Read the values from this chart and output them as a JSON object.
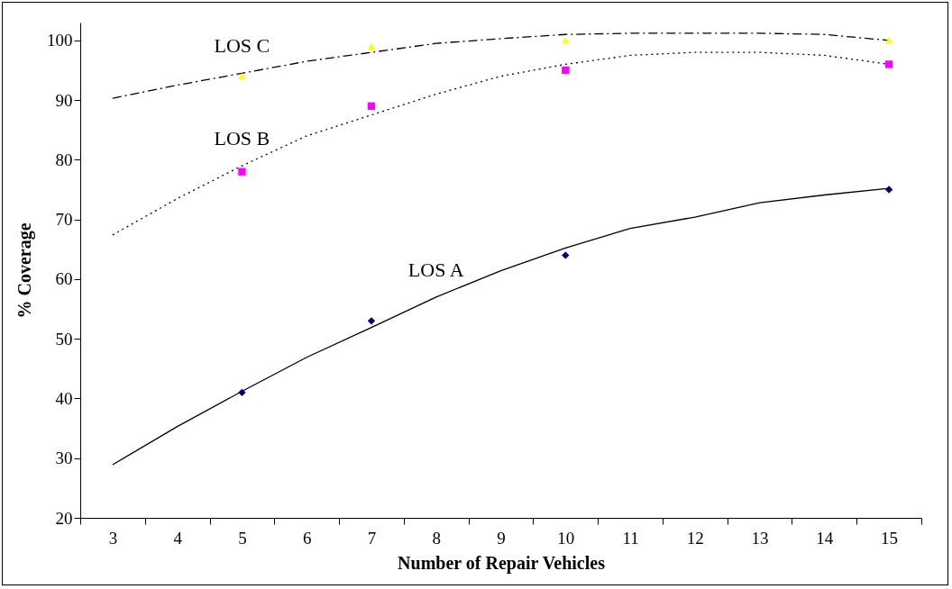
{
  "chart_data": {
    "type": "line",
    "xlabel": "Number of Repair Vehicles",
    "ylabel": "% Coverage",
    "categories": [
      "3",
      "4",
      "5",
      "6",
      "7",
      "8",
      "9",
      "10",
      "11",
      "12",
      "13",
      "14",
      "15"
    ],
    "ylim": [
      20,
      103
    ],
    "yticks": [
      20,
      30,
      40,
      50,
      60,
      70,
      80,
      90,
      100
    ],
    "grid": false,
    "series": [
      {
        "color": "#000000",
        "line_style": "solid",
        "values": [
          28.9,
          35.3,
          41.2,
          46.9,
          51.9,
          57.0,
          61.4,
          65.2,
          68.5,
          70.4,
          72.8,
          74.1,
          75.2
        ]
      },
      {
        "color": "#000000",
        "line_style": "dotted",
        "values": [
          67.4,
          73.5,
          79,
          84,
          87.5,
          91,
          94,
          96,
          97.5,
          98,
          98,
          97.5,
          96
        ]
      },
      {
        "color": "#000000",
        "line_style": "dashed",
        "values": [
          90.3,
          92.5,
          94.5,
          96.5,
          98,
          99.5,
          100.3,
          101,
          101.2,
          101.2,
          101.2,
          101,
          100
        ]
      },
      {
        "type": "scatter",
        "color": "#000080",
        "marker": "diamond",
        "values": [
          null,
          null,
          41,
          null,
          53,
          null,
          null,
          64,
          null,
          null,
          null,
          null,
          75
        ]
      },
      {
        "type": "scatter",
        "color": "#ff00ff",
        "marker": "square",
        "values": [
          null,
          null,
          78,
          null,
          89,
          null,
          null,
          95,
          null,
          null,
          null,
          null,
          96
        ]
      },
      {
        "type": "scatter",
        "color": "#ffff00",
        "marker": "triangle",
        "values": [
          null,
          null,
          94,
          null,
          99,
          null,
          null,
          100,
          null,
          null,
          null,
          null,
          100
        ]
      }
    ],
    "annotations": [
      {
        "text": "LOS C",
        "x": "5",
        "y": 94.5
      },
      {
        "text": "LOS B",
        "x": "5",
        "y": 79
      },
      {
        "text": "LOS A",
        "x": "8",
        "y": 57.0
      }
    ]
  }
}
